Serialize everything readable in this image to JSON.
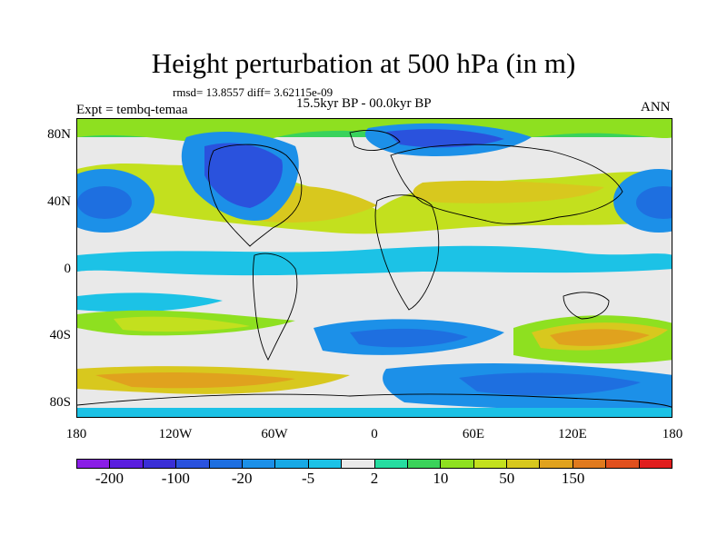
{
  "title": "Height perturbation at 500 hPa (in m)",
  "stats": "rmsd= 13.8557 diff= 3.62115e-09",
  "experiment": "Expt = tembq-temaa",
  "period": "15.5kyr BP - 00.0kyr BP",
  "season": "ANN",
  "lat_ticks": [
    "80N",
    "40N",
    "0",
    "40S",
    "80S"
  ],
  "lon_ticks": [
    "180",
    "120W",
    "60W",
    "0",
    "60E",
    "120E",
    "180"
  ],
  "colorbar": {
    "colors": [
      "#8a1ee6",
      "#5a1ede",
      "#3a2fd6",
      "#2a52dd",
      "#1e6fe0",
      "#1c90e8",
      "#17a9e5",
      "#1cc2e6",
      "#eaeaea",
      "#26dda0",
      "#3ad35a",
      "#8ee020",
      "#c3e01e",
      "#d8c81e",
      "#e0a21e",
      "#e07a1e",
      "#e0501e",
      "#e01e1e"
    ],
    "labels": [
      "-200",
      "-100",
      "-20",
      "-5",
      "2",
      "10",
      "50",
      "150"
    ]
  }
}
